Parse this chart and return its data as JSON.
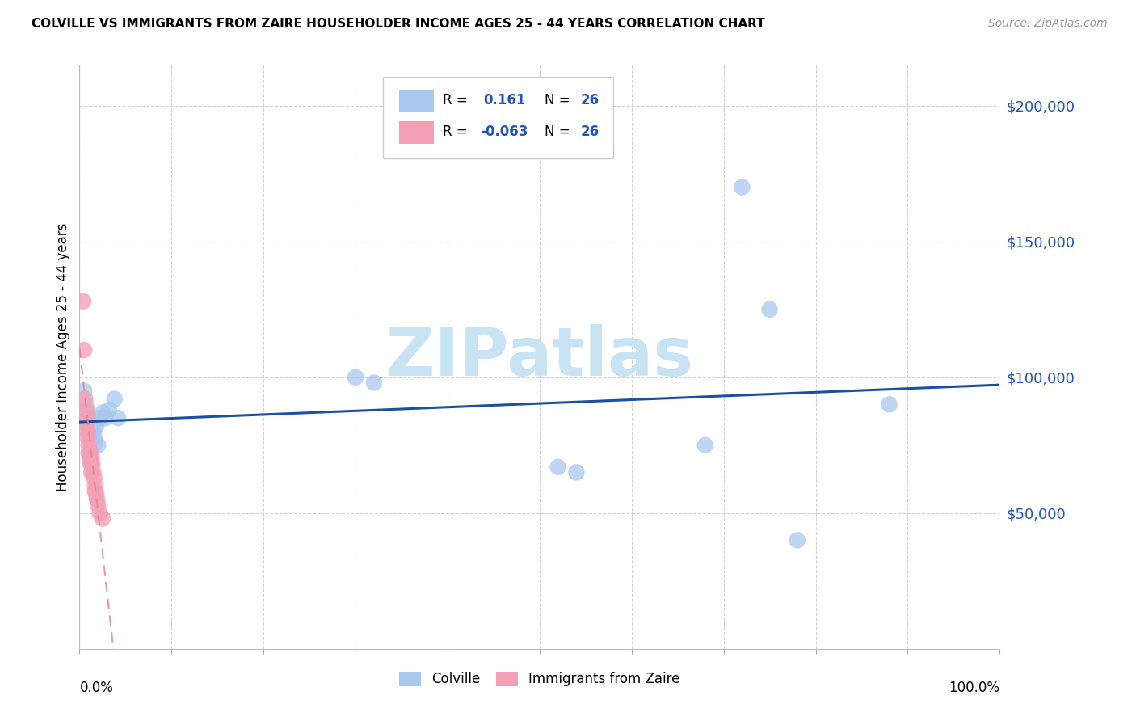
{
  "title": "COLVILLE VS IMMIGRANTS FROM ZAIRE HOUSEHOLDER INCOME AGES 25 - 44 YEARS CORRELATION CHART",
  "source": "Source: ZipAtlas.com",
  "ylabel": "Householder Income Ages 25 - 44 years",
  "ytick_labels": [
    "$50,000",
    "$100,000",
    "$150,000",
    "$200,000"
  ],
  "ytick_values": [
    50000,
    100000,
    150000,
    200000
  ],
  "ymin": 0,
  "ymax": 215000,
  "xmin": 0.0,
  "xmax": 1.0,
  "legend_label1": "Colville",
  "legend_label2": "Immigrants from Zaire",
  "colville_color": "#a8c8f0",
  "zaire_color": "#f4a0b4",
  "trendline_colville_color": "#1a50a0",
  "trendline_zaire_color": "#e08898",
  "watermark_color": "#c8e4f4",
  "title_color": "#000000",
  "source_color": "#999999",
  "ytick_color": "#2255bb",
  "grid_color": "#cccccc",
  "colville_x": [
    0.005,
    0.007,
    0.008,
    0.009,
    0.01,
    0.01,
    0.011,
    0.012,
    0.013,
    0.014,
    0.015,
    0.016,
    0.017,
    0.018,
    0.02,
    0.022,
    0.025,
    0.028,
    0.032,
    0.038,
    0.042,
    0.3,
    0.32,
    0.52,
    0.54,
    0.68,
    0.72,
    0.75,
    0.78,
    0.88
  ],
  "colville_y": [
    95000,
    90000,
    88000,
    82000,
    80000,
    85000,
    78000,
    80000,
    83000,
    82000,
    80000,
    78000,
    76000,
    82000,
    75000,
    85000,
    87000,
    85000,
    88000,
    92000,
    85000,
    100000,
    98000,
    67000,
    65000,
    75000,
    170000,
    125000,
    40000,
    90000
  ],
  "zaire_x": [
    0.004,
    0.005,
    0.006,
    0.007,
    0.008,
    0.008,
    0.009,
    0.009,
    0.01,
    0.01,
    0.011,
    0.011,
    0.012,
    0.012,
    0.013,
    0.013,
    0.014,
    0.015,
    0.016,
    0.017,
    0.017,
    0.018,
    0.019,
    0.02,
    0.022,
    0.025
  ],
  "zaire_y": [
    128000,
    110000,
    92000,
    88000,
    83000,
    85000,
    80000,
    78000,
    75000,
    72000,
    73000,
    70000,
    72000,
    68000,
    70000,
    65000,
    68000,
    65000,
    63000,
    60000,
    58000,
    57000,
    55000,
    53000,
    50000,
    48000
  ]
}
